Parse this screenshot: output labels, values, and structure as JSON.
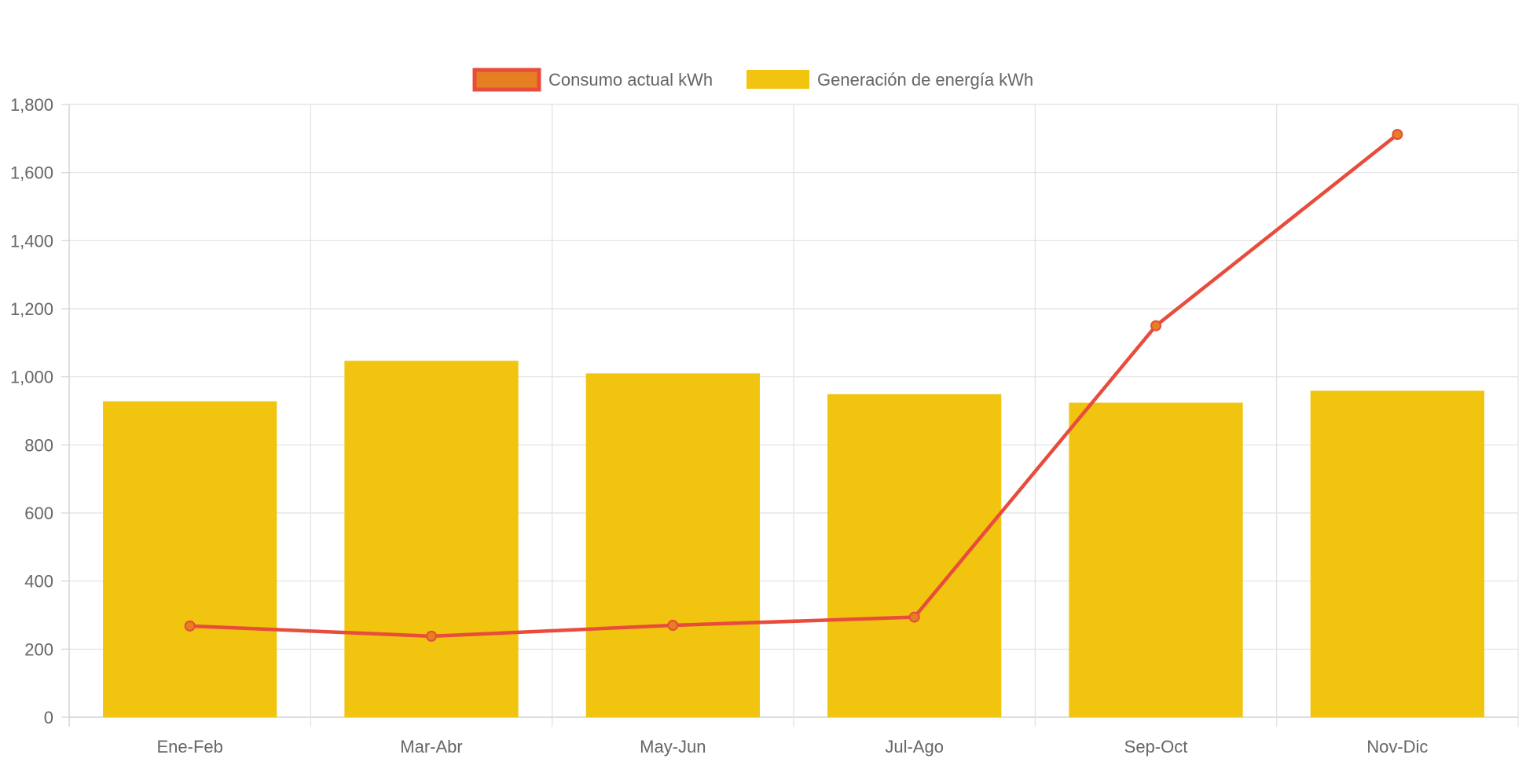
{
  "chart_data": {
    "type": "bar",
    "categories": [
      "Ene-Feb",
      "Mar-Abr",
      "May-Jun",
      "Jul-Ago",
      "Sep-Oct",
      "Nov-Dic"
    ],
    "series": [
      {
        "name": "Consumo actual kWh",
        "type": "line",
        "values": [
          268,
          238,
          270,
          294,
          1150,
          1712
        ],
        "color": "#e74c3c",
        "point_color": "#e67e22"
      },
      {
        "name": "Generación de energía kWh",
        "type": "bar",
        "values": [
          928,
          1047,
          1010,
          949,
          924,
          959
        ],
        "color": "#f1c40f"
      }
    ],
    "yticks": [
      "0",
      "200",
      "400",
      "600",
      "800",
      "1,000",
      "1,200",
      "1,400",
      "1,600",
      "1,800"
    ],
    "ylim": [
      0,
      1800
    ],
    "grid": true,
    "legend_position": "top"
  }
}
